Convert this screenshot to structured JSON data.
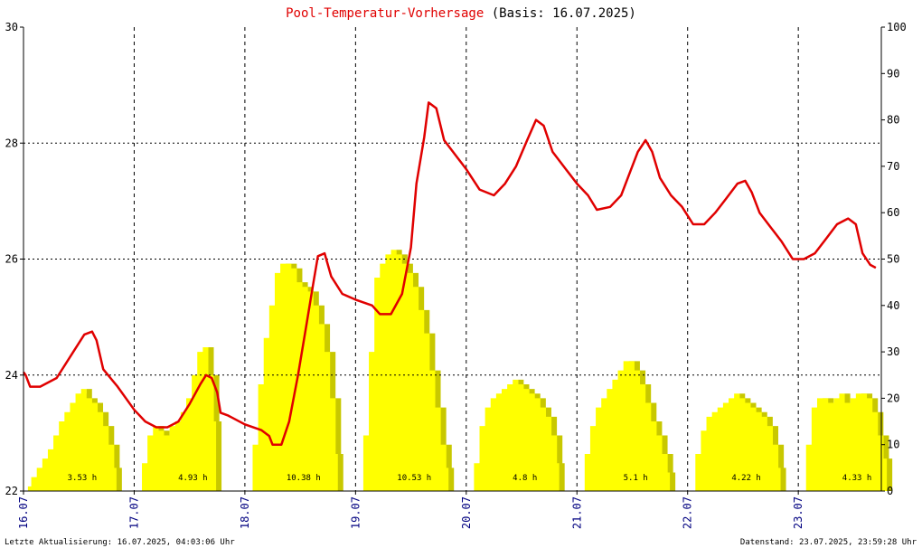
{
  "header": {
    "title_red": "Pool-Temperatur-Vorhersage",
    "title_black": "(Basis: 16.07.2025)"
  },
  "footer": {
    "left": "Letzte Aktualisierung: 16.07.2025, 04:03:06 Uhr",
    "right": "Datenstand: 23.07.2025, 23:59:28 Uhr"
  },
  "colors": {
    "temperature_line": "#e00000",
    "sunshine_fill": "#ffff00",
    "sunshine_shadow": "#c8c800",
    "grid": "#000000",
    "title_red": "#e00000",
    "date_labels": "#000080"
  },
  "chart_data": {
    "type": "line+area",
    "x_labels": [
      "16.07",
      "17.07",
      "18.07",
      "19.07",
      "20.07",
      "21.07",
      "22.07",
      "23.07"
    ],
    "y_left": {
      "min": 22,
      "max": 30,
      "ticks": [
        "22",
        "24",
        "26",
        "28",
        "30"
      ]
    },
    "y_right": {
      "min": 0,
      "max": 100,
      "ticks": [
        "0",
        "10",
        "20",
        "30",
        "40",
        "50",
        "60",
        "70",
        "80",
        "90",
        "100"
      ]
    },
    "grid": "dotted horizontal at 24/26/28, dashed vertical at day boundaries",
    "series": [
      {
        "kind": "line",
        "axis": "left",
        "points": [
          [
            0.0,
            24.05
          ],
          [
            0.02,
            24.0
          ],
          [
            0.06,
            23.8
          ],
          [
            0.15,
            23.8
          ],
          [
            0.3,
            23.95
          ],
          [
            0.45,
            24.4
          ],
          [
            0.55,
            24.7
          ],
          [
            0.62,
            24.75
          ],
          [
            0.66,
            24.6
          ],
          [
            0.72,
            24.1
          ],
          [
            0.85,
            23.8
          ],
          [
            1.0,
            23.4
          ],
          [
            1.1,
            23.2
          ],
          [
            1.2,
            23.1
          ],
          [
            1.3,
            23.1
          ],
          [
            1.4,
            23.2
          ],
          [
            1.5,
            23.5
          ],
          [
            1.6,
            23.85
          ],
          [
            1.65,
            24.0
          ],
          [
            1.7,
            23.95
          ],
          [
            1.75,
            23.7
          ],
          [
            1.78,
            23.35
          ],
          [
            1.85,
            23.3
          ],
          [
            2.0,
            23.15
          ],
          [
            2.15,
            23.05
          ],
          [
            2.22,
            22.95
          ],
          [
            2.25,
            22.8
          ],
          [
            2.33,
            22.8
          ],
          [
            2.4,
            23.2
          ],
          [
            2.48,
            24.0
          ],
          [
            2.55,
            24.8
          ],
          [
            2.62,
            25.6
          ],
          [
            2.66,
            26.05
          ],
          [
            2.72,
            26.1
          ],
          [
            2.78,
            25.7
          ],
          [
            2.88,
            25.4
          ],
          [
            3.0,
            25.3
          ],
          [
            3.15,
            25.2
          ],
          [
            3.22,
            25.05
          ],
          [
            3.32,
            25.05
          ],
          [
            3.42,
            25.4
          ],
          [
            3.5,
            26.2
          ],
          [
            3.55,
            27.3
          ],
          [
            3.62,
            28.1
          ],
          [
            3.66,
            28.7
          ],
          [
            3.73,
            28.6
          ],
          [
            3.8,
            28.05
          ],
          [
            3.9,
            27.8
          ],
          [
            4.0,
            27.55
          ],
          [
            4.12,
            27.2
          ],
          [
            4.25,
            27.1
          ],
          [
            4.35,
            27.3
          ],
          [
            4.45,
            27.6
          ],
          [
            4.55,
            28.05
          ],
          [
            4.63,
            28.4
          ],
          [
            4.7,
            28.3
          ],
          [
            4.78,
            27.85
          ],
          [
            4.9,
            27.55
          ],
          [
            5.0,
            27.3
          ],
          [
            5.1,
            27.1
          ],
          [
            5.18,
            26.85
          ],
          [
            5.3,
            26.9
          ],
          [
            5.4,
            27.1
          ],
          [
            5.48,
            27.5
          ],
          [
            5.55,
            27.85
          ],
          [
            5.62,
            28.05
          ],
          [
            5.68,
            27.85
          ],
          [
            5.75,
            27.4
          ],
          [
            5.85,
            27.1
          ],
          [
            5.95,
            26.9
          ],
          [
            6.05,
            26.6
          ],
          [
            6.15,
            26.6
          ],
          [
            6.25,
            26.8
          ],
          [
            6.35,
            27.05
          ],
          [
            6.45,
            27.3
          ],
          [
            6.52,
            27.35
          ],
          [
            6.58,
            27.15
          ],
          [
            6.65,
            26.8
          ],
          [
            6.75,
            26.55
          ],
          [
            6.85,
            26.3
          ],
          [
            6.95,
            26.0
          ],
          [
            7.05,
            26.0
          ],
          [
            7.15,
            26.1
          ],
          [
            7.25,
            26.35
          ],
          [
            7.35,
            26.6
          ],
          [
            7.45,
            26.7
          ],
          [
            7.52,
            26.6
          ],
          [
            7.58,
            26.1
          ],
          [
            7.65,
            25.9
          ],
          [
            7.7,
            25.85
          ]
        ]
      },
      {
        "kind": "area",
        "axis": "right",
        "label_unit": "h",
        "days": [
          {
            "hours_label": "3.53 h",
            "profile": [
              [
                0.0,
                0
              ],
              [
                0.02,
                1
              ],
              [
                0.05,
                3
              ],
              [
                0.1,
                5
              ],
              [
                0.15,
                7
              ],
              [
                0.2,
                9
              ],
              [
                0.25,
                12
              ],
              [
                0.3,
                15
              ],
              [
                0.35,
                17
              ],
              [
                0.4,
                19
              ],
              [
                0.45,
                21
              ],
              [
                0.5,
                22
              ],
              [
                0.55,
                20
              ],
              [
                0.6,
                19
              ],
              [
                0.65,
                17
              ],
              [
                0.7,
                14
              ],
              [
                0.75,
                10
              ],
              [
                0.8,
                5
              ],
              [
                0.82,
                0
              ]
            ]
          },
          {
            "hours_label": "4.93 h",
            "profile": [
              [
                0.0,
                0
              ],
              [
                0.05,
                6
              ],
              [
                0.1,
                12
              ],
              [
                0.15,
                14
              ],
              [
                0.2,
                13
              ],
              [
                0.25,
                12
              ],
              [
                0.3,
                14
              ],
              [
                0.35,
                15
              ],
              [
                0.4,
                17
              ],
              [
                0.45,
                20
              ],
              [
                0.5,
                25
              ],
              [
                0.55,
                30
              ],
              [
                0.6,
                31
              ],
              [
                0.65,
                25
              ],
              [
                0.7,
                15
              ],
              [
                0.72,
                0
              ]
            ]
          },
          {
            "hours_label": "10.38 h",
            "profile": [
              [
                0.0,
                0
              ],
              [
                0.05,
                10
              ],
              [
                0.1,
                23
              ],
              [
                0.15,
                33
              ],
              [
                0.2,
                40
              ],
              [
                0.25,
                47
              ],
              [
                0.3,
                49
              ],
              [
                0.35,
                49
              ],
              [
                0.4,
                48
              ],
              [
                0.45,
                45
              ],
              [
                0.5,
                44
              ],
              [
                0.55,
                43
              ],
              [
                0.6,
                40
              ],
              [
                0.65,
                36
              ],
              [
                0.7,
                30
              ],
              [
                0.75,
                20
              ],
              [
                0.8,
                8
              ],
              [
                0.82,
                0
              ]
            ]
          },
          {
            "hours_label": "10.53 h",
            "profile": [
              [
                0.0,
                0
              ],
              [
                0.05,
                12
              ],
              [
                0.1,
                30
              ],
              [
                0.15,
                46
              ],
              [
                0.2,
                49
              ],
              [
                0.25,
                51
              ],
              [
                0.3,
                52
              ],
              [
                0.35,
                51
              ],
              [
                0.4,
                49
              ],
              [
                0.45,
                47
              ],
              [
                0.5,
                44
              ],
              [
                0.55,
                39
              ],
              [
                0.6,
                34
              ],
              [
                0.65,
                26
              ],
              [
                0.7,
                18
              ],
              [
                0.75,
                10
              ],
              [
                0.8,
                5
              ],
              [
                0.82,
                0
              ]
            ]
          },
          {
            "hours_label": "4.8 h",
            "profile": [
              [
                0.0,
                0
              ],
              [
                0.05,
                6
              ],
              [
                0.1,
                14
              ],
              [
                0.15,
                18
              ],
              [
                0.2,
                20
              ],
              [
                0.25,
                21
              ],
              [
                0.3,
                22
              ],
              [
                0.35,
                23
              ],
              [
                0.4,
                24
              ],
              [
                0.45,
                23
              ],
              [
                0.5,
                22
              ],
              [
                0.55,
                21
              ],
              [
                0.6,
                20
              ],
              [
                0.65,
                18
              ],
              [
                0.7,
                16
              ],
              [
                0.75,
                12
              ],
              [
                0.8,
                6
              ],
              [
                0.82,
                0
              ]
            ]
          },
          {
            "hours_label": "5.1 h",
            "profile": [
              [
                0.0,
                0
              ],
              [
                0.05,
                8
              ],
              [
                0.1,
                14
              ],
              [
                0.15,
                18
              ],
              [
                0.2,
                20
              ],
              [
                0.25,
                22
              ],
              [
                0.3,
                24
              ],
              [
                0.35,
                26
              ],
              [
                0.4,
                28
              ],
              [
                0.45,
                28
              ],
              [
                0.5,
                26
              ],
              [
                0.55,
                23
              ],
              [
                0.6,
                19
              ],
              [
                0.65,
                15
              ],
              [
                0.7,
                12
              ],
              [
                0.75,
                8
              ],
              [
                0.8,
                4
              ],
              [
                0.82,
                0
              ]
            ]
          },
          {
            "hours_label": "4.22 h",
            "profile": [
              [
                0.0,
                0
              ],
              [
                0.05,
                8
              ],
              [
                0.1,
                13
              ],
              [
                0.15,
                16
              ],
              [
                0.2,
                17
              ],
              [
                0.25,
                18
              ],
              [
                0.3,
                19
              ],
              [
                0.35,
                20
              ],
              [
                0.4,
                21
              ],
              [
                0.45,
                20
              ],
              [
                0.5,
                19
              ],
              [
                0.55,
                18
              ],
              [
                0.6,
                17
              ],
              [
                0.65,
                16
              ],
              [
                0.7,
                14
              ],
              [
                0.75,
                10
              ],
              [
                0.8,
                5
              ],
              [
                0.82,
                0
              ]
            ]
          },
          {
            "hours_label": "4.33 h",
            "profile": [
              [
                0.0,
                0
              ],
              [
                0.05,
                10
              ],
              [
                0.1,
                18
              ],
              [
                0.15,
                20
              ],
              [
                0.2,
                20
              ],
              [
                0.25,
                19
              ],
              [
                0.3,
                20
              ],
              [
                0.35,
                21
              ],
              [
                0.4,
                19
              ],
              [
                0.45,
                20
              ],
              [
                0.5,
                21
              ],
              [
                0.55,
                21
              ],
              [
                0.6,
                20
              ],
              [
                0.65,
                17
              ],
              [
                0.7,
                12
              ],
              [
                0.75,
                7
              ],
              [
                0.78,
                0
              ]
            ]
          }
        ]
      }
    ]
  }
}
